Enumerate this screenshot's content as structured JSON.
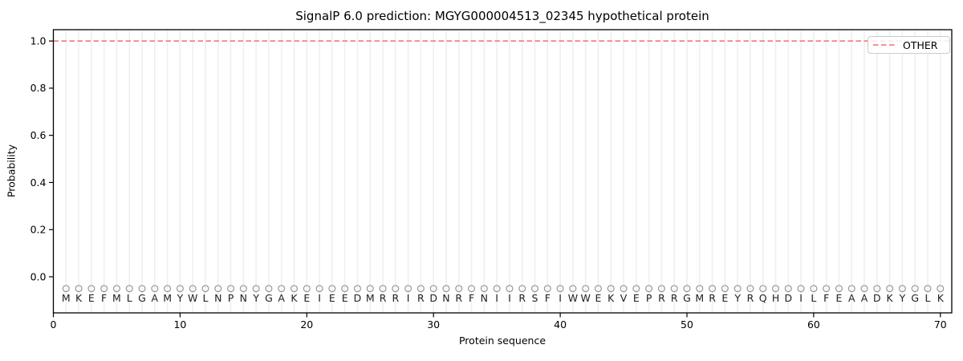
{
  "chart_data": {
    "type": "line",
    "title": "SignalP 6.0 prediction: MGYG000004513_02345 hypothetical protein",
    "xlabel": "Protein sequence",
    "ylabel": "Probability",
    "x_ticks": [
      0,
      10,
      20,
      30,
      40,
      50,
      60,
      70
    ],
    "y_ticks": [
      "0.0",
      "0.2",
      "0.4",
      "0.6",
      "0.8",
      "1.0"
    ],
    "xlim": [
      0,
      70.9
    ],
    "ylim": [
      -0.153,
      1.048
    ],
    "grid": "vertical gridline at every residue position, no horizontal gridlines",
    "legend": {
      "position": "upper-right",
      "entries": [
        {
          "label": "OTHER",
          "line_style": "dashed",
          "color": "#f28282"
        }
      ]
    },
    "series": [
      {
        "name": "OTHER",
        "line_style": "dashed",
        "color": "#f28282",
        "y_constant": 1.0,
        "x_start": 0,
        "x_end": 70.9,
        "description": "flat dashed line at probability 1.0 across all 70 residues"
      }
    ],
    "sequence": "MKEFMLGAMYWLNPNYGAKEIEEDMRRIRDNRFNIIRSFIWWEKVEPRRGMREYRQHDILFEAADKYGLK",
    "sequence_length": 70,
    "residue_marker": {
      "shape": "open-circle",
      "y": -0.05,
      "color": "#969696"
    },
    "residue_letter_y": -0.09,
    "colors": {
      "grid": "#efefef",
      "spine": "#000000",
      "tick": "#000000",
      "tick_label": "#000000",
      "letter": "#222222",
      "background": "#ffffff"
    }
  }
}
